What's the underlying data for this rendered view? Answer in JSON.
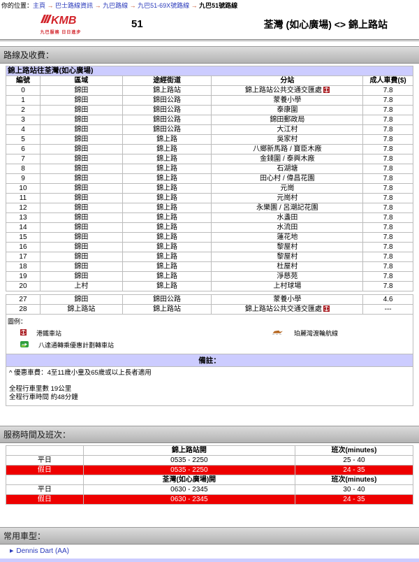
{
  "breadcrumb": {
    "prefix_label": "你的位置：",
    "separator": "→",
    "links": [
      "主頁",
      "巴士路線資訊",
      "九巴路線",
      "九巴51-69X號路線"
    ],
    "current": "九巴51號路線"
  },
  "header": {
    "logo_brand": "KMB",
    "logo_slogan": "九巴服務 日日進步",
    "route_number": "51",
    "route_name": "荃灣 (如心廣場) <> 錦上路站"
  },
  "route_fares": {
    "section_title": "路線及收費：",
    "direction_title": "錦上路站往荃灣(如心廣場)",
    "columns": [
      "編號",
      "區域",
      "途經街道",
      "分站",
      "成人車費($)"
    ],
    "stops": [
      {
        "no": "0",
        "region": "錦田",
        "street": "錦上路站",
        "stop": "錦上路站公共交通交匯處",
        "fare": "7.8",
        "mtr": true
      },
      {
        "no": "1",
        "region": "錦田",
        "street": "錦田公路",
        "stop": "蒙養小學",
        "fare": "7.8",
        "mtr": false
      },
      {
        "no": "2",
        "region": "錦田",
        "street": "錦田公路",
        "stop": "泰康圍",
        "fare": "7.8",
        "mtr": false
      },
      {
        "no": "3",
        "region": "錦田",
        "street": "錦田公路",
        "stop": "錦田郵政局",
        "fare": "7.8",
        "mtr": false
      },
      {
        "no": "4",
        "region": "錦田",
        "street": "錦田公路",
        "stop": "大江村",
        "fare": "7.8",
        "mtr": false
      },
      {
        "no": "5",
        "region": "錦田",
        "street": "錦上路",
        "stop": "吳家村",
        "fare": "7.8",
        "mtr": false
      },
      {
        "no": "6",
        "region": "錦田",
        "street": "錦上路",
        "stop": "八鄉新馬路 / 寶臣木廠",
        "fare": "7.8",
        "mtr": false
      },
      {
        "no": "7",
        "region": "錦田",
        "street": "錦上路",
        "stop": "金錢圍 / 泰興木廠",
        "fare": "7.8",
        "mtr": false
      },
      {
        "no": "8",
        "region": "錦田",
        "street": "錦上路",
        "stop": "石湖塘",
        "fare": "7.8",
        "mtr": false
      },
      {
        "no": "9",
        "region": "錦田",
        "street": "錦上路",
        "stop": "田心村 / 偉昌花園",
        "fare": "7.8",
        "mtr": false
      },
      {
        "no": "10",
        "region": "錦田",
        "street": "錦上路",
        "stop": "元崗",
        "fare": "7.8",
        "mtr": false
      },
      {
        "no": "11",
        "region": "錦田",
        "street": "錦上路",
        "stop": "元崗村",
        "fare": "7.8",
        "mtr": false
      },
      {
        "no": "12",
        "region": "錦田",
        "street": "錦上路",
        "stop": "永樂園 / 呂潮記花園",
        "fare": "7.8",
        "mtr": false
      },
      {
        "no": "13",
        "region": "錦田",
        "street": "錦上路",
        "stop": "水盞田",
        "fare": "7.8",
        "mtr": false
      },
      {
        "no": "14",
        "region": "錦田",
        "street": "錦上路",
        "stop": "水流田",
        "fare": "7.8",
        "mtr": false
      },
      {
        "no": "15",
        "region": "錦田",
        "street": "錦上路",
        "stop": "蓮花地",
        "fare": "7.8",
        "mtr": false
      },
      {
        "no": "16",
        "region": "錦田",
        "street": "錦上路",
        "stop": "黎屋村",
        "fare": "7.8",
        "mtr": false
      },
      {
        "no": "17",
        "region": "錦田",
        "street": "錦上路",
        "stop": "黎屋村",
        "fare": "7.8",
        "mtr": false
      },
      {
        "no": "18",
        "region": "錦田",
        "street": "錦上路",
        "stop": "杜屋村",
        "fare": "7.8",
        "mtr": false
      },
      {
        "no": "19",
        "region": "錦田",
        "street": "錦上路",
        "stop": "淨慈苑",
        "fare": "7.8",
        "mtr": false
      },
      {
        "no": "20",
        "region": "上村",
        "street": "錦上路",
        "stop": "上村球場",
        "fare": "7.8",
        "mtr": false
      }
    ],
    "stops_continued": [
      {
        "no": "27",
        "region": "錦田",
        "street": "錦田公路",
        "stop": "蒙養小學",
        "fare": "4.6",
        "mtr": false
      },
      {
        "no": "28",
        "region": "錦上路站",
        "street": "錦上路站",
        "stop": "錦上路站公共交通交匯處",
        "fare": "---",
        "mtr": true
      }
    ]
  },
  "legend": {
    "title": "圖例：",
    "items": [
      {
        "icon": "mtr-icon",
        "label": "港鐵車站"
      },
      {
        "icon": "octopus-interchange-icon",
        "label": "八達通轉乘優惠計劃轉車站"
      },
      {
        "icon": "ferry-icon",
        "label": "珀麗灣渡輪航線"
      }
    ]
  },
  "remarks": {
    "title": "備註：",
    "note": "^ 優惠車費：4至11歲小童及65歲或以上長者適用",
    "distance": "全程行車里數 19公里",
    "duration": "全程行車時間 約48分鐘"
  },
  "service": {
    "section_title": "服務時間及班次：",
    "freq_label": "班次(minutes)",
    "tables": [
      {
        "terminus": "錦上路站開",
        "rows": [
          {
            "day": "平日",
            "hours": "0535 - 2250",
            "freq": "25 - 40",
            "holiday": false
          },
          {
            "day": "假日",
            "hours": "0535 - 2250",
            "freq": "24 - 35",
            "holiday": true
          }
        ]
      },
      {
        "terminus": "荃灣(如心廣場)開",
        "rows": [
          {
            "day": "平日",
            "hours": "0630 - 2345",
            "freq": "30 - 40",
            "holiday": false
          },
          {
            "day": "假日",
            "hours": "0630 - 2345",
            "freq": "24 - 35",
            "holiday": true
          }
        ]
      }
    ]
  },
  "bus_models": {
    "section_title": "常用車型：",
    "links": [
      "Dennis Dart (AA)"
    ]
  },
  "colors": {
    "holiday_row_red": "#ee0000",
    "lavender_bar": "#ccccff",
    "link_blue": "#2b3bbb",
    "kmb_red": "#d2232a",
    "section_bar_gray": "#c0c0c0"
  }
}
